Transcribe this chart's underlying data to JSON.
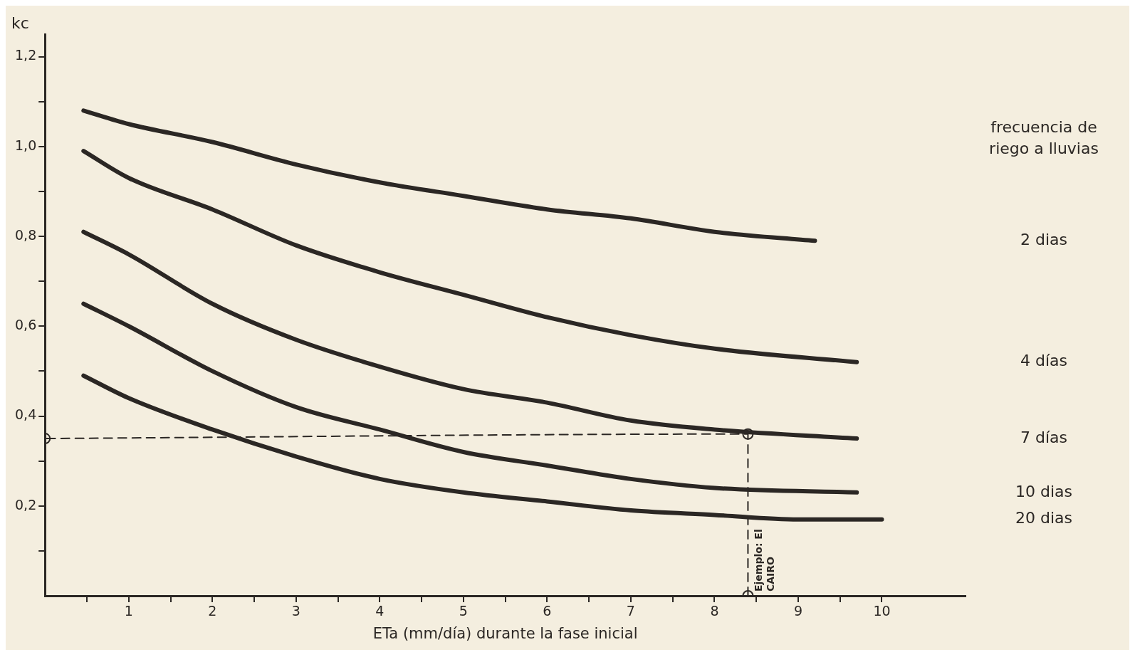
{
  "chart_data": {
    "type": "line",
    "xlabel": "ETa (mm/día) durante la fase inicial",
    "ylabel": "kc",
    "legend_title": "frecuencia de riego a lluvias",
    "legend": false,
    "grid": false,
    "marker": "none",
    "line_style": "solid",
    "xlim": [
      0,
      11
    ],
    "ylim": [
      0,
      1.25
    ],
    "xticks": [
      {
        "value": 0.5,
        "label": null
      },
      1,
      {
        "value": 1.5,
        "label": null
      },
      2,
      {
        "value": 2.5,
        "label": null
      },
      3,
      {
        "value": 3.5,
        "label": null
      },
      4,
      {
        "value": 4.5,
        "label": null
      },
      5,
      {
        "value": 5.5,
        "label": null
      },
      6,
      {
        "value": 6.5,
        "label": null
      },
      7,
      {
        "value": 7.5,
        "label": null
      },
      8,
      {
        "value": 8.5,
        "label": null
      },
      9,
      {
        "value": 9.5,
        "label": null
      },
      10
    ],
    "yticks": [
      {
        "value": 0.1,
        "label": null
      },
      {
        "value": 0.2,
        "label": "0,2"
      },
      {
        "value": 0.3,
        "label": null
      },
      {
        "value": 0.4,
        "label": "0,4"
      },
      {
        "value": 0.5,
        "label": null
      },
      {
        "value": 0.6,
        "label": "0,6"
      },
      {
        "value": 0.7,
        "label": null
      },
      {
        "value": 0.8,
        "label": "0,8"
      },
      {
        "value": 0.9,
        "label": null
      },
      {
        "value": 1.0,
        "label": "1,0"
      },
      {
        "value": 1.1,
        "label": null
      },
      {
        "value": 1.2,
        "label": "1,2"
      }
    ],
    "series": [
      {
        "name": "2 dias",
        "color": "#2b2724",
        "x": [
          0.46,
          1,
          2,
          3,
          4,
          5,
          6,
          7,
          8,
          9.2
        ],
        "values": [
          1.08,
          1.05,
          1.01,
          0.96,
          0.92,
          0.89,
          0.86,
          0.84,
          0.81,
          0.79
        ]
      },
      {
        "name": "4 días",
        "color": "#2b2724",
        "x": [
          0.46,
          1,
          2,
          3,
          4,
          5,
          6,
          7,
          8,
          9.7
        ],
        "values": [
          0.99,
          0.93,
          0.86,
          0.78,
          0.72,
          0.67,
          0.62,
          0.58,
          0.55,
          0.52
        ]
      },
      {
        "name": "7 días",
        "color": "#2b2724",
        "x": [
          0.46,
          1,
          2,
          3,
          4,
          5,
          6,
          7,
          8,
          9.7
        ],
        "values": [
          0.81,
          0.76,
          0.65,
          0.57,
          0.51,
          0.46,
          0.43,
          0.39,
          0.37,
          0.35
        ]
      },
      {
        "name": "10 dias",
        "color": "#2b2724",
        "x": [
          0.46,
          1,
          2,
          3,
          4,
          5,
          6,
          7,
          8,
          9.7
        ],
        "values": [
          0.65,
          0.6,
          0.5,
          0.42,
          0.37,
          0.32,
          0.29,
          0.26,
          0.24,
          0.23
        ]
      },
      {
        "name": "20 dias",
        "color": "#2b2724",
        "x": [
          0.46,
          1,
          2,
          3,
          4,
          5,
          6,
          7,
          8,
          9,
          10
        ],
        "values": [
          0.49,
          0.44,
          0.37,
          0.31,
          0.26,
          0.23,
          0.21,
          0.19,
          0.18,
          0.17,
          0.17
        ]
      },
      {
        "type": "line",
        "color": "#2b2724",
        "line_style": "dashed",
        "marker": "circle",
        "x": [
          8.4,
          8.4,
          0
        ],
        "values": [
          0,
          0.36,
          0.35
        ]
      }
    ],
    "annotations": [
      {
        "text": "Ejemplo: El CAIRO",
        "x": 8.4,
        "y": 0
      }
    ]
  }
}
